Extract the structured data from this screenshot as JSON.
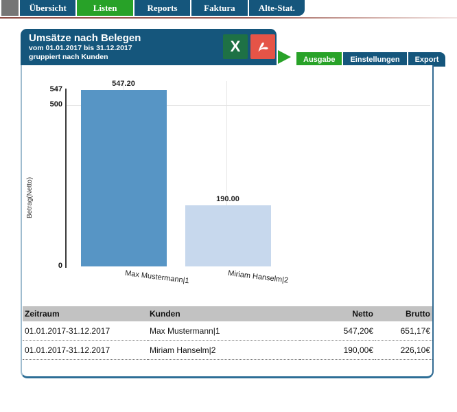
{
  "nav": {
    "tabs": [
      {
        "label": "Übersicht",
        "active": false
      },
      {
        "label": "Listen",
        "active": true
      },
      {
        "label": "Reports",
        "active": false
      },
      {
        "label": "Faktura",
        "active": false
      },
      {
        "label": "Alte-Stat.",
        "active": false
      }
    ]
  },
  "header": {
    "title": "Umsätze nach Belegen",
    "period": "vom 01.01.2017 bis 31.12.2017",
    "grouping": "gruppiert nach Kunden",
    "excel_icon_label": "X"
  },
  "view_tabs": [
    {
      "label": "Ausgabe",
      "active": true
    },
    {
      "label": "Einstellungen",
      "active": false
    },
    {
      "label": "Export",
      "active": false
    }
  ],
  "chart_data": {
    "type": "bar",
    "categories": [
      "Max Mustermann|1",
      "Miriam Hanselm|2"
    ],
    "values": [
      547.2,
      190.0
    ],
    "value_labels": [
      "547.20",
      "190.00"
    ],
    "title": "",
    "xlabel": "",
    "ylabel": "Betrag(Netto)",
    "ylim": [
      0,
      547.2
    ],
    "ytick_labels": [
      "547",
      "500",
      "0"
    ],
    "ytick_values": [
      547.2,
      500,
      0
    ],
    "grid": true,
    "bar_colors": [
      "#5795c5",
      "#c7d8ed"
    ]
  },
  "table": {
    "headers": [
      "Zeitraum",
      "Kunden",
      "Netto",
      "Brutto"
    ],
    "rows": [
      [
        "01.01.2017-31.12.2017",
        "Max Mustermann|1",
        "547,20€",
        "651,17€"
      ],
      [
        "01.01.2017-31.12.2017",
        "Miriam Hanselm|2",
        "190,00€",
        "226,10€"
      ]
    ]
  },
  "colors": {
    "nav_blue": "#15567c",
    "accent_green": "#28a228",
    "excel_green": "#1e7145",
    "pdf_red": "#e55447",
    "bar_primary": "#5795c5",
    "bar_secondary": "#c7d8ed",
    "table_header_bg": "#c2c2c2",
    "underline_maroon": "#8c4b43"
  }
}
